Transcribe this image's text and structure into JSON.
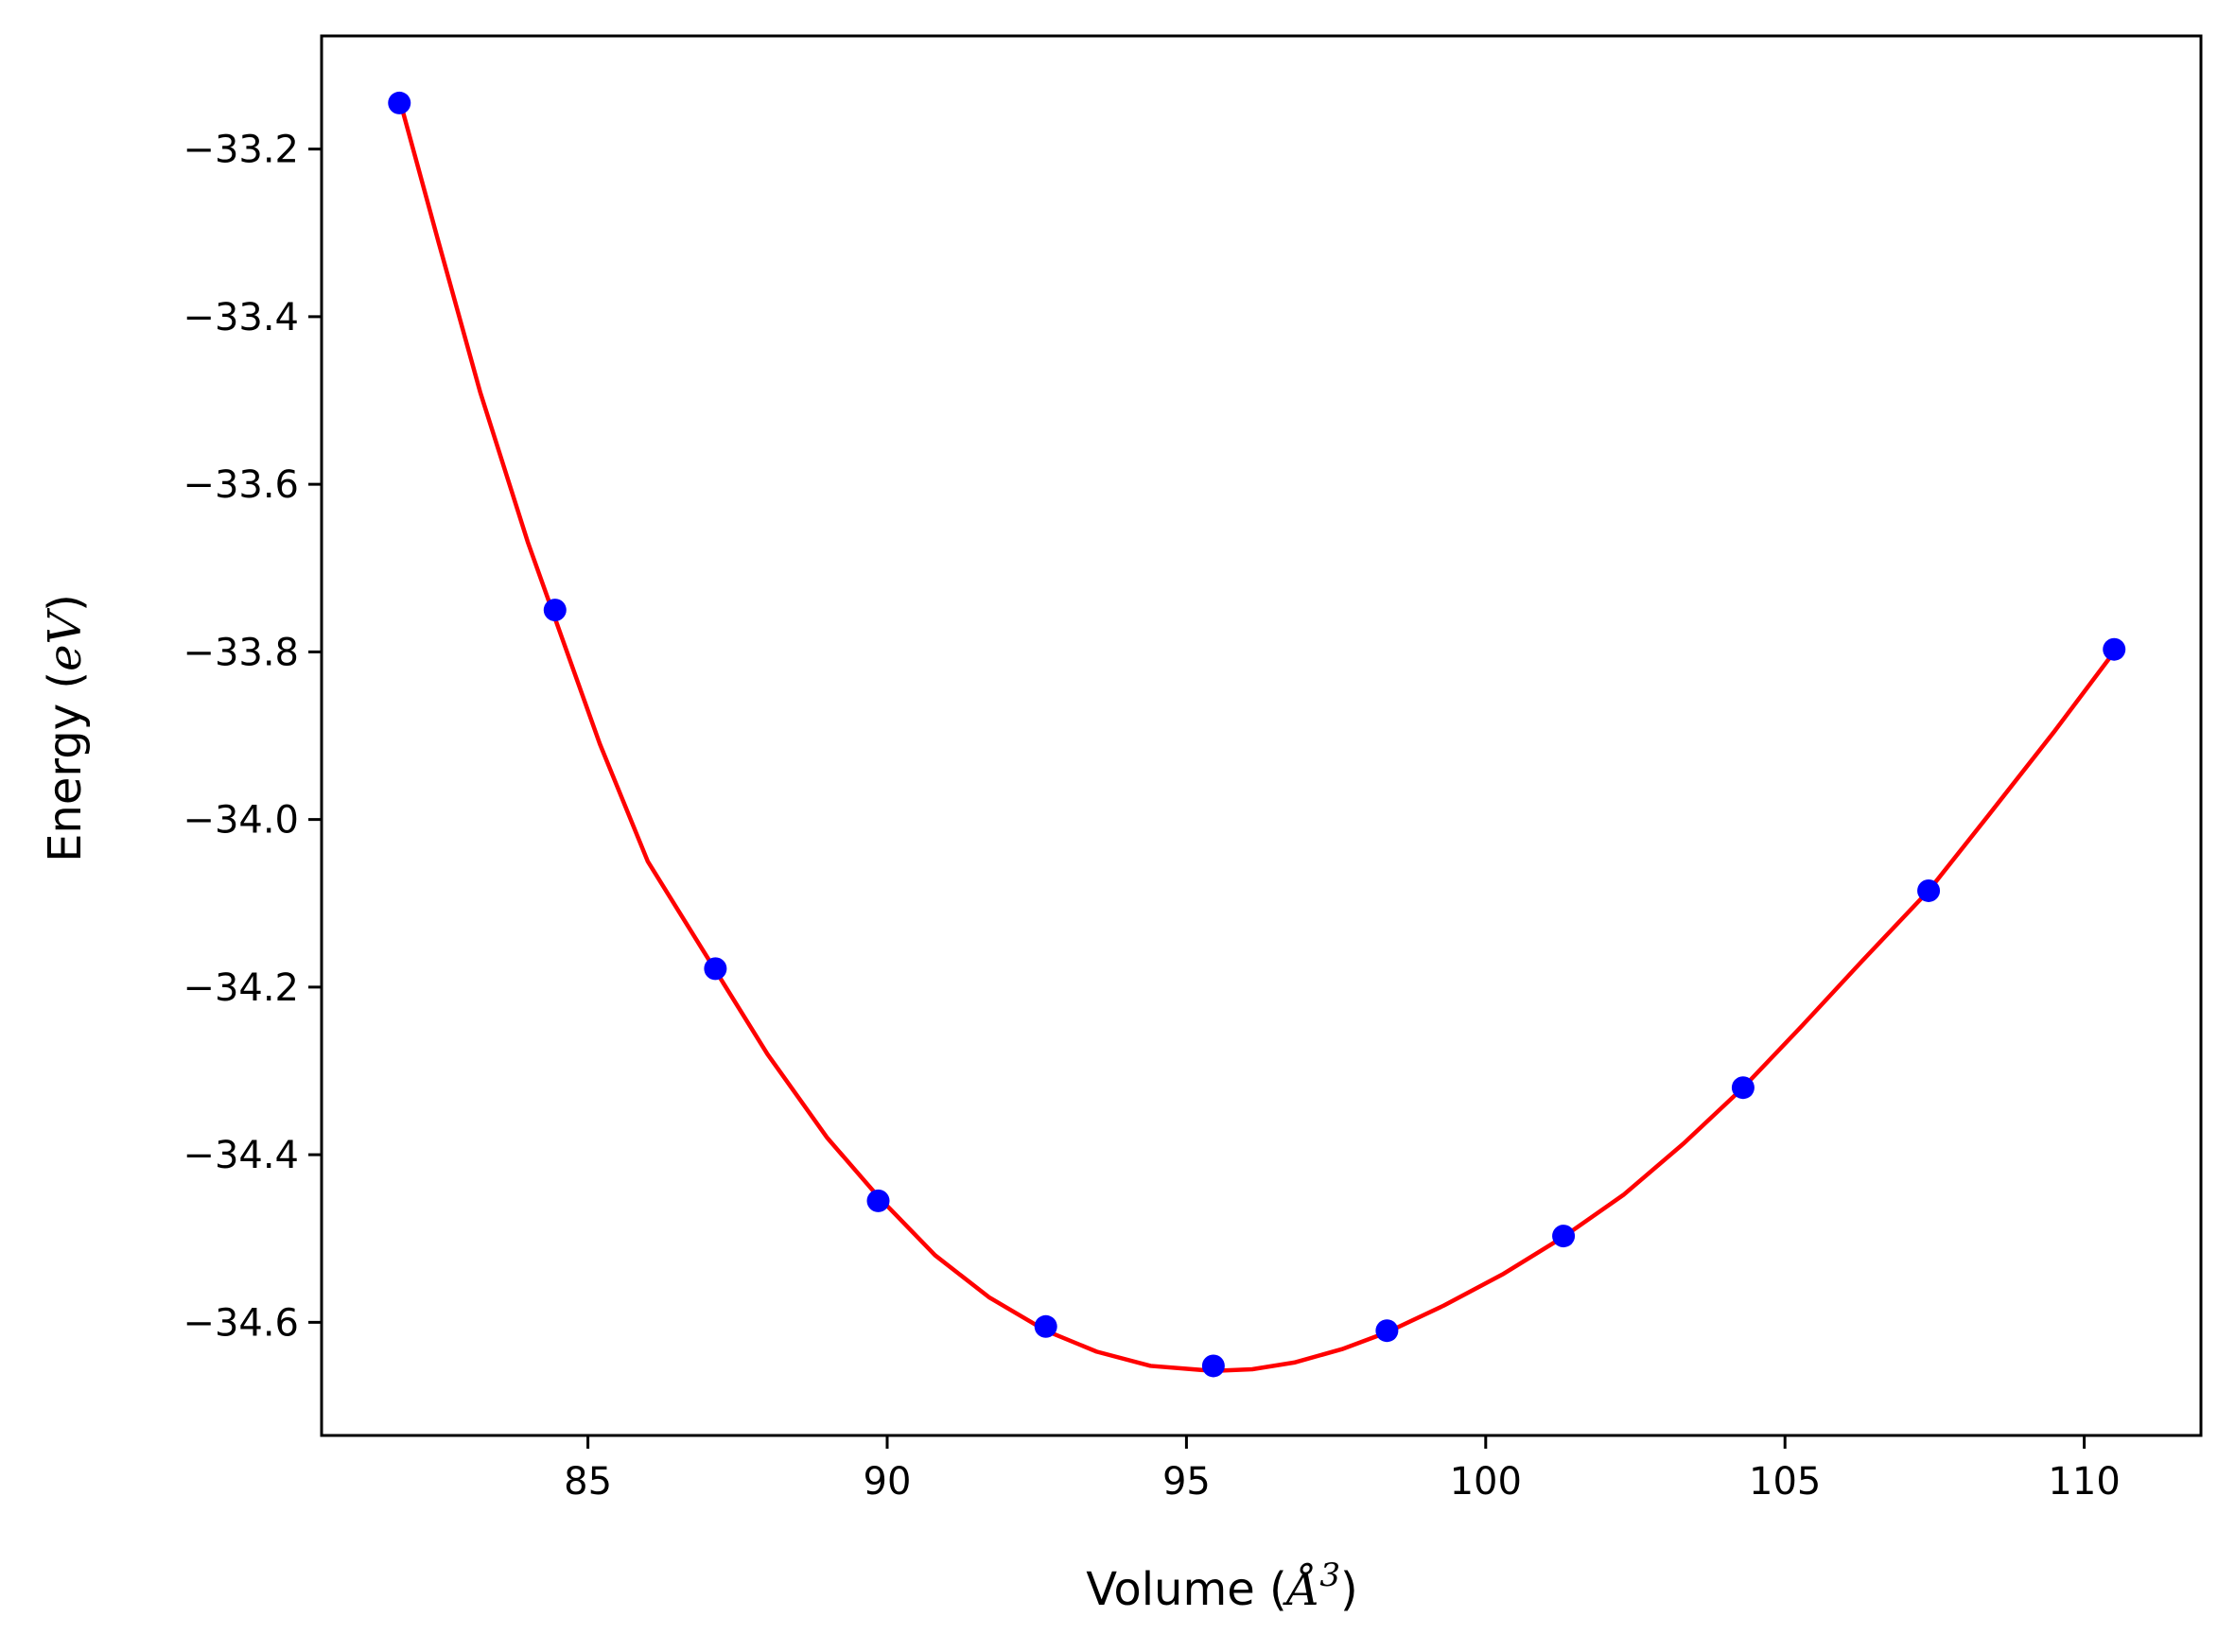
{
  "chart_data": {
    "type": "scatter",
    "title": "",
    "xlabel": "Volume ($\\AA^3$)",
    "ylabel": "Energy ($eV$)",
    "xlabel_parts": {
      "prefix": "Volume (",
      "symbol": "Å",
      "sup": "3",
      "suffix": ")"
    },
    "ylabel_parts": {
      "prefix": "Energy (",
      "symbol": "eV",
      "suffix": ")"
    },
    "xlim": [
      80.55,
      111.95
    ],
    "ylim": [
      -34.735,
      -33.065
    ],
    "grid": false,
    "legend": "none",
    "x_ticks": [
      85,
      90,
      95,
      100,
      105,
      110
    ],
    "x_tick_labels": [
      "85",
      "90",
      "95",
      "100",
      "105",
      "110"
    ],
    "y_ticks": [
      -33.2,
      -33.4,
      -33.6,
      -33.8,
      -34.0,
      -34.2,
      -34.4,
      -34.6
    ],
    "y_tick_labels": [
      "−33.2",
      "−33.4",
      "−33.6",
      "−33.8",
      "−34.0",
      "−34.2",
      "−34.4",
      "−34.6"
    ],
    "series": [
      {
        "kind": "points",
        "color": "#0000ff",
        "x": [
          81.85,
          84.45,
          87.13,
          89.85,
          92.65,
          95.45,
          98.35,
          101.3,
          104.3,
          107.4,
          110.5
        ],
        "y": [
          -33.145,
          -33.75,
          -34.178,
          -34.455,
          -34.605,
          -34.652,
          -34.61,
          -34.497,
          -34.32,
          -34.085,
          -33.797
        ]
      },
      {
        "kind": "fit-curve",
        "color": "#ff0000",
        "x": [
          81.85,
          82.5,
          83.2,
          84.0,
          84.45,
          85.2,
          86.0,
          87.13,
          88.0,
          89.0,
          89.85,
          90.8,
          91.7,
          92.65,
          93.5,
          94.4,
          95.45,
          96.1,
          96.8,
          97.6,
          98.35,
          99.3,
          100.3,
          101.3,
          102.3,
          103.3,
          104.3,
          105.3,
          106.3,
          107.4,
          108.4,
          109.5,
          110.5
        ],
        "y": [
          -33.14,
          -33.31,
          -33.49,
          -33.67,
          -33.76,
          -33.91,
          -34.05,
          -34.18,
          -34.28,
          -34.38,
          -34.45,
          -34.52,
          -34.57,
          -34.61,
          -34.635,
          -34.652,
          -34.658,
          -34.656,
          -34.648,
          -34.632,
          -34.612,
          -34.58,
          -34.542,
          -34.498,
          -34.448,
          -34.387,
          -34.32,
          -34.245,
          -34.168,
          -34.085,
          -33.995,
          -33.895,
          -33.8
        ]
      }
    ]
  }
}
